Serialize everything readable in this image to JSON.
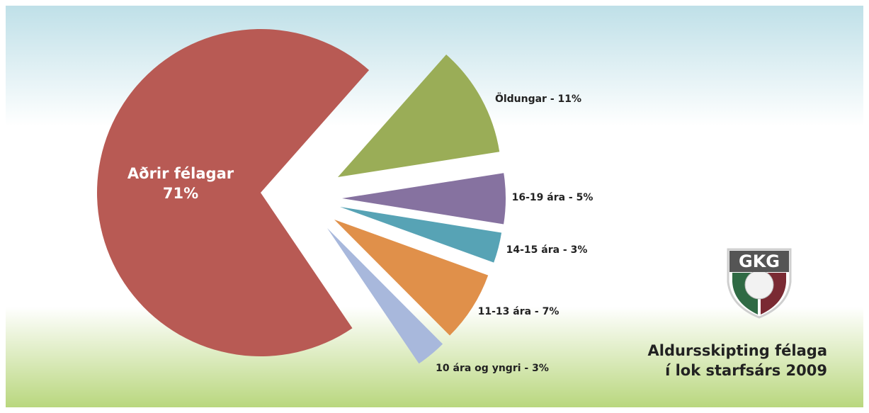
{
  "chart_data": {
    "type": "pie",
    "title": [
      "Aldursskipting félaga",
      "í lok starfsárs 2009"
    ],
    "logo": "GKG",
    "categories": [
      "Aðrir félagar",
      "Öldungar",
      "16-19 ára",
      "14-15 ára",
      "11-13 ára",
      "10 ára og yngri"
    ],
    "values": [
      71,
      11,
      5,
      3,
      7,
      3
    ],
    "value_labels": [
      [
        "Aðrir félagar",
        "71%"
      ],
      [
        "Öldungar - 11%"
      ],
      [
        "16-19 ára - 5%"
      ],
      [
        "14-15 ára - 3%"
      ],
      [
        "11-13 ára - 7%"
      ],
      [
        "10 ára og yngri - 3%"
      ]
    ],
    "colors": [
      "#b85a54",
      "#9aad57",
      "#8672a0",
      "#57a3b5",
      "#e0904a",
      "#a8b8dc"
    ]
  }
}
